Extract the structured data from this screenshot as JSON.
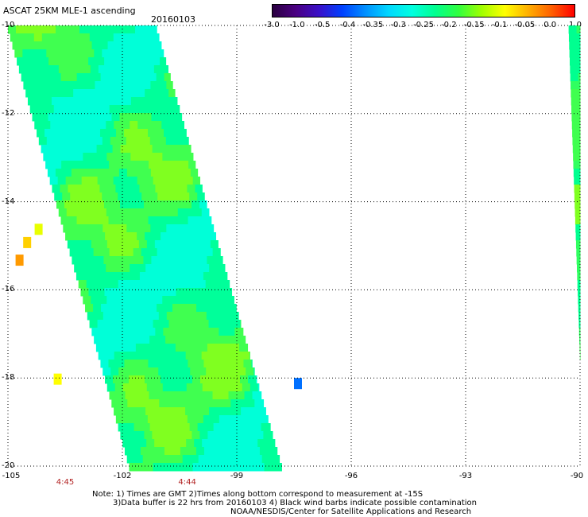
{
  "header": {
    "title": "ASCAT 25KM MLE-1 ascending",
    "date": "20160103"
  },
  "colorbar": {
    "ticks": [
      "-3.0",
      "-1.0",
      "-0.5",
      "-0.4",
      "-0.35",
      "-0.3",
      "-0.25",
      "-0.2",
      "-0.15",
      "-0.1",
      "-0.05",
      "0.0",
      "1.0"
    ],
    "colors": [
      "#2a0040",
      "#4b0082",
      "#3a10c8",
      "#0040ff",
      "#0090ff",
      "#00d8ff",
      "#00ffe0",
      "#00ff90",
      "#30ff40",
      "#a0ff00",
      "#ffff00",
      "#ffb000",
      "#ff6000",
      "#ff0000"
    ]
  },
  "axes": {
    "x_ticks": [
      "-105",
      "-102",
      "-99",
      "-96",
      "-93",
      "-90"
    ],
    "y_ticks": [
      "-10",
      "-12",
      "-14",
      "-16",
      "-18",
      "-20"
    ],
    "x_range": [
      -105,
      -90
    ],
    "y_range": [
      -20,
      -10
    ]
  },
  "times": [
    {
      "label": "4:45",
      "lon": -103.5
    },
    {
      "label": "4:44",
      "lon": -100.3
    }
  ],
  "notes": {
    "line1": "Note: 1) Times are GMT 2)Times along bottom correspond to measurement at -15S",
    "line2": "3)Data buffer is 22 hrs from 20160103 4) Black wind barbs indicate possible contamination",
    "line3": "NOAA/NESDIS/Center for Satellite Applications and Research"
  },
  "swaths": {
    "main": {
      "lon_left_top": -105,
      "lon_right_top": -101.1,
      "lon_left_bottom": -101.8,
      "lon_right_bottom": -97.8
    },
    "east": {
      "lon_left_top": -90.3,
      "lon_right_top": -90,
      "lon_left_bottom": -89.9,
      "lon_right_bottom": -90
    }
  }
}
